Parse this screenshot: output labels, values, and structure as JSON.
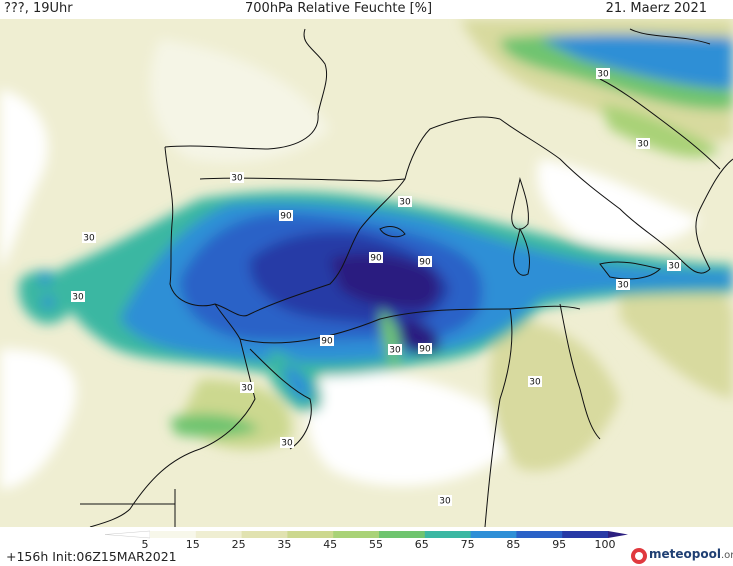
{
  "header": {
    "left": "???, 19Uhr",
    "title": "700hPa Relative Feuchte [%]",
    "date": "21. Maerz 2021"
  },
  "footer": {
    "init": "+156h  Init:06Z15MAR2021",
    "logo_name": "meteopool",
    "logo_tld": ".org"
  },
  "legend": {
    "ticks": [
      "5",
      "15",
      "25",
      "35",
      "45",
      "55",
      "65",
      "75",
      "85",
      "95",
      "100"
    ],
    "colors": [
      "#ffffff",
      "#f7f7ea",
      "#efeed2",
      "#e1e2b0",
      "#ccd88f",
      "#a9d277",
      "#6fc46f",
      "#3bb7a2",
      "#2f8fd6",
      "#2b62c7",
      "#283aa6",
      "#2c1f80"
    ]
  },
  "map_labels": {
    "contour_30": "30",
    "contour_90": "90"
  },
  "colors": {
    "bg_white": "#ffffff",
    "dry_tan": "#efeed2",
    "olive": "#d8da9f",
    "green": "#9fcf7a",
    "teal": "#3fb3a0",
    "mid_blue": "#2f7fd0",
    "deep_blue": "#2b4fc0",
    "navy": "#2a2a90",
    "border": "#111111"
  },
  "icons": {
    "logo": "meteopool-logo-icon"
  }
}
